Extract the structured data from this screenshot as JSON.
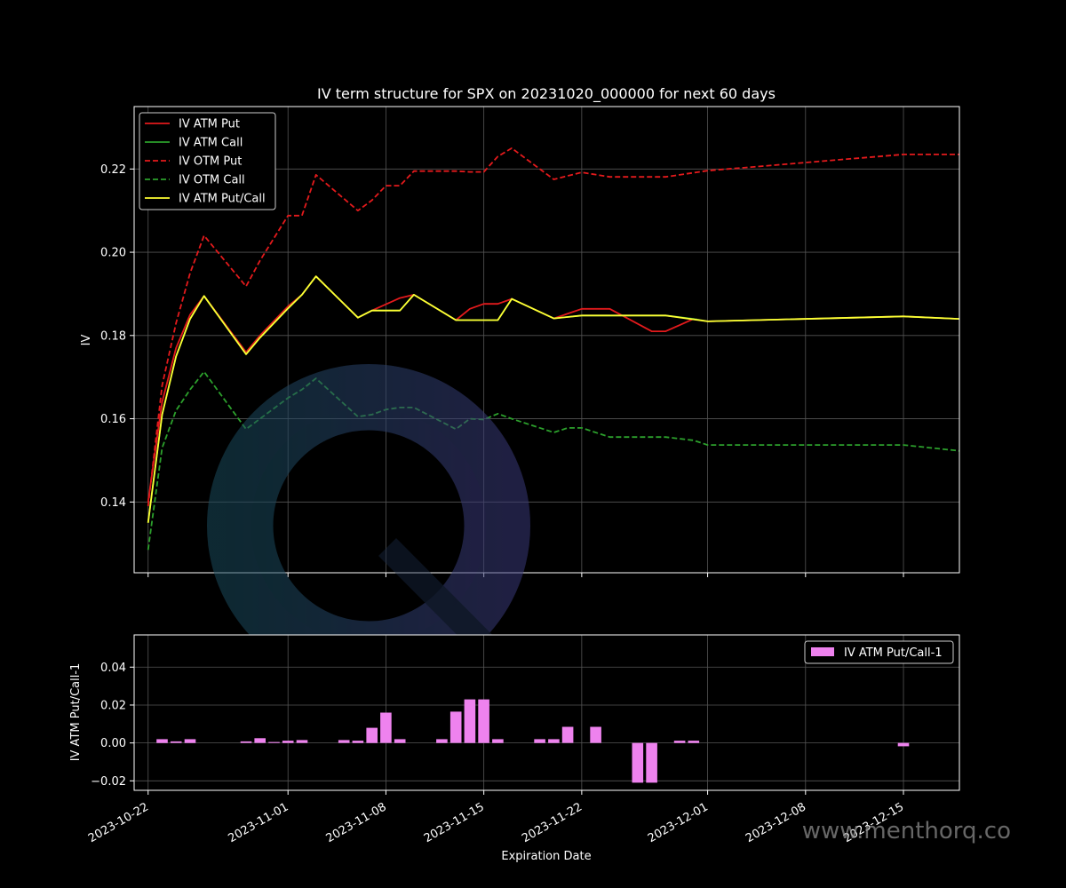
{
  "chart_data": [
    {
      "type": "line",
      "title": "IV term structure for SPX on 20231020_000000 for next 60 days",
      "xlabel": "",
      "ylabel": "IV",
      "xlim": [
        "2023-10-21",
        "2023-12-19"
      ],
      "ylim": [
        0.123,
        0.235
      ],
      "yticks": [
        0.14,
        0.16,
        0.18,
        0.2,
        0.22
      ],
      "ytick_labels": [
        "0.14",
        "0.16",
        "0.18",
        "0.20",
        "0.22"
      ],
      "grid": true,
      "legend_position": "top-left",
      "series": [
        {
          "name": "IV ATM Put",
          "color": "#e31a1c",
          "dash": "solid",
          "x": [
            "2023-10-22",
            "2023-10-23",
            "2023-10-24",
            "2023-10-25",
            "2023-10-26",
            "2023-10-29",
            "2023-10-30",
            "2023-11-01",
            "2023-11-02",
            "2023-11-03",
            "2023-11-06",
            "2023-11-07",
            "2023-11-08",
            "2023-11-09",
            "2023-11-10",
            "2023-11-13",
            "2023-11-14",
            "2023-11-15",
            "2023-11-16",
            "2023-11-17",
            "2023-11-20",
            "2023-11-22",
            "2023-11-24",
            "2023-11-27",
            "2023-11-28",
            "2023-11-30",
            "2023-12-01",
            "2023-12-15",
            "2023-12-19"
          ],
          "values": [
            0.14,
            0.164,
            0.177,
            0.185,
            0.1895,
            0.176,
            0.18,
            0.187,
            0.1898,
            0.1942,
            0.1843,
            0.186,
            0.1875,
            0.189,
            0.1898,
            0.1837,
            0.1864,
            0.1876,
            0.1876,
            0.1888,
            0.1841,
            0.1864,
            0.1864,
            0.181,
            0.181,
            0.184,
            0.1834,
            0.1846,
            0.184
          ]
        },
        {
          "name": "IV ATM Call",
          "color": "#2ca02c",
          "dash": "solid",
          "x": [
            "2023-10-22",
            "2023-10-23",
            "2023-10-24",
            "2023-10-25",
            "2023-10-26",
            "2023-10-29",
            "2023-10-30",
            "2023-11-01",
            "2023-11-02",
            "2023-11-03",
            "2023-11-06",
            "2023-11-07",
            "2023-11-08",
            "2023-11-09",
            "2023-11-10",
            "2023-11-13",
            "2023-11-14",
            "2023-11-15",
            "2023-11-16",
            "2023-11-17",
            "2023-11-20",
            "2023-11-22",
            "2023-11-24",
            "2023-11-27",
            "2023-11-28",
            "2023-11-30",
            "2023-12-01",
            "2023-12-15",
            "2023-12-19"
          ],
          "values": [
            0.135,
            0.161,
            0.175,
            0.184,
            0.1895,
            0.1755,
            0.1795,
            0.1865,
            0.1898,
            0.1942,
            0.1843,
            0.186,
            0.186,
            0.186,
            0.1898,
            0.1837,
            0.1837,
            0.1837,
            0.1837,
            0.1888,
            0.1841,
            0.1848,
            0.1848,
            0.1848,
            0.1848,
            0.184,
            0.1834,
            0.1846,
            0.184
          ]
        },
        {
          "name": "IV OTM Put",
          "color": "#e31a1c",
          "dash": "dashed",
          "x": [
            "2023-10-22",
            "2023-10-23",
            "2023-10-24",
            "2023-10-25",
            "2023-10-26",
            "2023-10-29",
            "2023-10-30",
            "2023-11-01",
            "2023-11-02",
            "2023-11-03",
            "2023-11-06",
            "2023-11-07",
            "2023-11-08",
            "2023-11-09",
            "2023-11-10",
            "2023-11-13",
            "2023-11-14",
            "2023-11-15",
            "2023-11-16",
            "2023-11-17",
            "2023-11-20",
            "2023-11-22",
            "2023-11-24",
            "2023-11-27",
            "2023-11-28",
            "2023-12-01",
            "2023-12-15",
            "2023-12-19"
          ],
          "values": [
            0.139,
            0.168,
            0.183,
            0.195,
            0.204,
            0.1918,
            0.198,
            0.2088,
            0.2088,
            0.2186,
            0.21,
            0.2125,
            0.216,
            0.216,
            0.2195,
            0.2195,
            0.2193,
            0.2193,
            0.223,
            0.225,
            0.2175,
            0.2192,
            0.2181,
            0.2181,
            0.2181,
            0.2196,
            0.2235,
            0.2235
          ]
        },
        {
          "name": "IV OTM Call",
          "color": "#2ca02c",
          "dash": "dashed",
          "x": [
            "2023-10-22",
            "2023-10-23",
            "2023-10-24",
            "2023-10-25",
            "2023-10-26",
            "2023-10-29",
            "2023-10-30",
            "2023-11-01",
            "2023-11-02",
            "2023-11-03",
            "2023-11-06",
            "2023-11-07",
            "2023-11-08",
            "2023-11-09",
            "2023-11-10",
            "2023-11-13",
            "2023-11-14",
            "2023-11-15",
            "2023-11-16",
            "2023-11-17",
            "2023-11-20",
            "2023-11-21",
            "2023-11-22",
            "2023-11-24",
            "2023-11-28",
            "2023-11-30",
            "2023-12-01",
            "2023-12-08",
            "2023-12-15",
            "2023-12-19"
          ],
          "values": [
            0.1285,
            0.153,
            0.162,
            0.167,
            0.1713,
            0.1575,
            0.16,
            0.165,
            0.167,
            0.1697,
            0.1605,
            0.161,
            0.1622,
            0.1627,
            0.1627,
            0.1575,
            0.16,
            0.1598,
            0.1612,
            0.16,
            0.1567,
            0.1578,
            0.1578,
            0.1556,
            0.1556,
            0.1548,
            0.1537,
            0.1537,
            0.1537,
            0.1523
          ]
        },
        {
          "name": "IV ATM Put/Call",
          "color": "#ffff33",
          "dash": "solid",
          "x": [
            "2023-10-22",
            "2023-10-23",
            "2023-10-24",
            "2023-10-25",
            "2023-10-26",
            "2023-10-29",
            "2023-10-30",
            "2023-11-01",
            "2023-11-02",
            "2023-11-03",
            "2023-11-06",
            "2023-11-07",
            "2023-11-08",
            "2023-11-09",
            "2023-11-10",
            "2023-11-13",
            "2023-11-14",
            "2023-11-15",
            "2023-11-16",
            "2023-11-17",
            "2023-11-20",
            "2023-11-22",
            "2023-11-24",
            "2023-11-28",
            "2023-12-01",
            "2023-12-15",
            "2023-12-19"
          ],
          "values": [
            0.135,
            0.161,
            0.175,
            0.184,
            0.1895,
            0.1755,
            0.1795,
            0.1865,
            0.1898,
            0.1942,
            0.1843,
            0.186,
            0.186,
            0.186,
            0.1898,
            0.1837,
            0.1837,
            0.1837,
            0.1837,
            0.1888,
            0.1841,
            0.1848,
            0.1848,
            0.1848,
            0.1834,
            0.1846,
            0.184
          ]
        }
      ]
    },
    {
      "type": "bar",
      "title": "",
      "xlabel": "Expiration Date",
      "ylabel": "IV ATM Put/Call-1",
      "xlim": [
        "2023-10-21",
        "2023-12-19"
      ],
      "ylim": [
        -0.025,
        0.057
      ],
      "yticks": [
        -0.02,
        0.0,
        0.02,
        0.04
      ],
      "ytick_labels": [
        "−0.02",
        "0.00",
        "0.02",
        "0.04"
      ],
      "xticks": [
        "2023-10-22",
        "2023-11-01",
        "2023-11-08",
        "2023-11-15",
        "2023-11-22",
        "2023-12-01",
        "2023-12-08",
        "2023-12-15"
      ],
      "xtick_labels": [
        "2023-10-22",
        "2023-11-01",
        "2023-11-08",
        "2023-11-15",
        "2023-11-22",
        "2023-12-01",
        "2023-12-08",
        "2023-12-15"
      ],
      "grid": true,
      "legend_position": "top-right",
      "series": [
        {
          "name": "IV ATM Put/Call-1",
          "color": "#ee82ee",
          "x": [
            "2023-10-23",
            "2023-10-24",
            "2023-10-25",
            "2023-10-29",
            "2023-10-30",
            "2023-10-31",
            "2023-11-01",
            "2023-11-02",
            "2023-11-05",
            "2023-11-06",
            "2023-11-07",
            "2023-11-08",
            "2023-11-09",
            "2023-11-12",
            "2023-11-13",
            "2023-11-14",
            "2023-11-15",
            "2023-11-16",
            "2023-11-19",
            "2023-11-20",
            "2023-11-21",
            "2023-11-23",
            "2023-11-26",
            "2023-11-27",
            "2023-11-29",
            "2023-11-30",
            "2023-12-15"
          ],
          "values": [
            0.002,
            0.0008,
            0.002,
            0.0008,
            0.0025,
            0.0005,
            0.0012,
            0.0015,
            0.0015,
            0.0012,
            0.008,
            0.016,
            0.002,
            0.002,
            0.0165,
            0.023,
            0.023,
            0.002,
            0.002,
            0.002,
            0.0085,
            0.0085,
            -0.021,
            -0.021,
            0.0012,
            0.0012,
            -0.0018
          ]
        }
      ]
    }
  ],
  "watermark": {
    "text": "www.menthorq.co"
  }
}
